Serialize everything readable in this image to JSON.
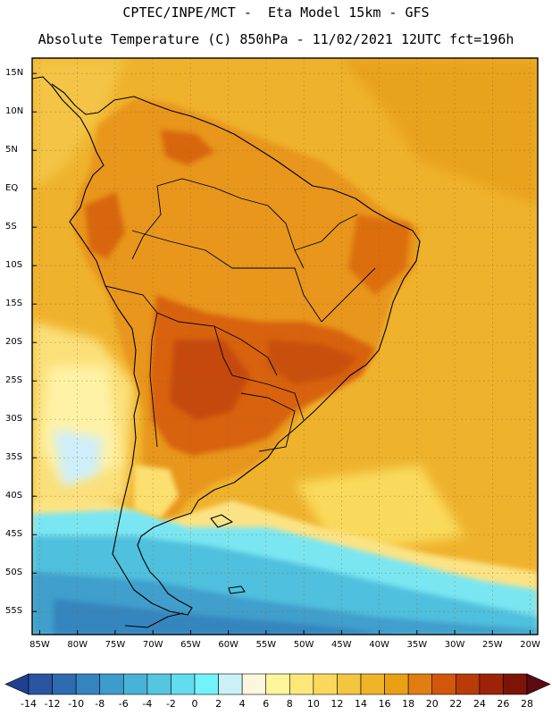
{
  "header": {
    "line1": "CPTEC/INPE/MCT -  Eta Model 15km - GFS",
    "line2": "Absolute Temperature (C) 850hPa - 11/02/2021 12UTC fct=196h"
  },
  "axes": {
    "lat_labels": [
      "15N",
      "10N",
      "5N",
      "EQ",
      "5S",
      "10S",
      "15S",
      "20S",
      "25S",
      "30S",
      "35S",
      "40S",
      "45S",
      "50S",
      "55S"
    ],
    "lon_labels": [
      "85W",
      "80W",
      "75W",
      "70W",
      "65W",
      "60W",
      "55W",
      "50W",
      "45W",
      "40W",
      "35W",
      "30W",
      "25W",
      "20W"
    ]
  },
  "colorbar": {
    "labels": [
      "-14",
      "-12",
      "-10",
      "-8",
      "-6",
      "-4",
      "-2",
      "0",
      "2",
      "4",
      "6",
      "8",
      "10",
      "12",
      "14",
      "16",
      "18",
      "20",
      "22",
      "24",
      "26",
      "28"
    ],
    "colors": [
      "#1f3f8f",
      "#2a55a0",
      "#2e6cb2",
      "#3584c0",
      "#3c9ccc",
      "#48b3d6",
      "#54c6e0",
      "#62dcef",
      "#72f2fa",
      "#cbf1f7",
      "#fdf6df",
      "#fff59a",
      "#fde77a",
      "#f9d85c",
      "#f3c63f",
      "#efb428",
      "#e9a015",
      "#e07e10",
      "#d1580a",
      "#b83b08",
      "#9c2308",
      "#7c1508",
      "#5c0a12"
    ]
  },
  "map": {
    "lon_range": [
      -86,
      -19
    ],
    "lat_range": [
      -58,
      17
    ],
    "variable": "temperature-850hPa",
    "palette_background": "#efb029"
  }
}
